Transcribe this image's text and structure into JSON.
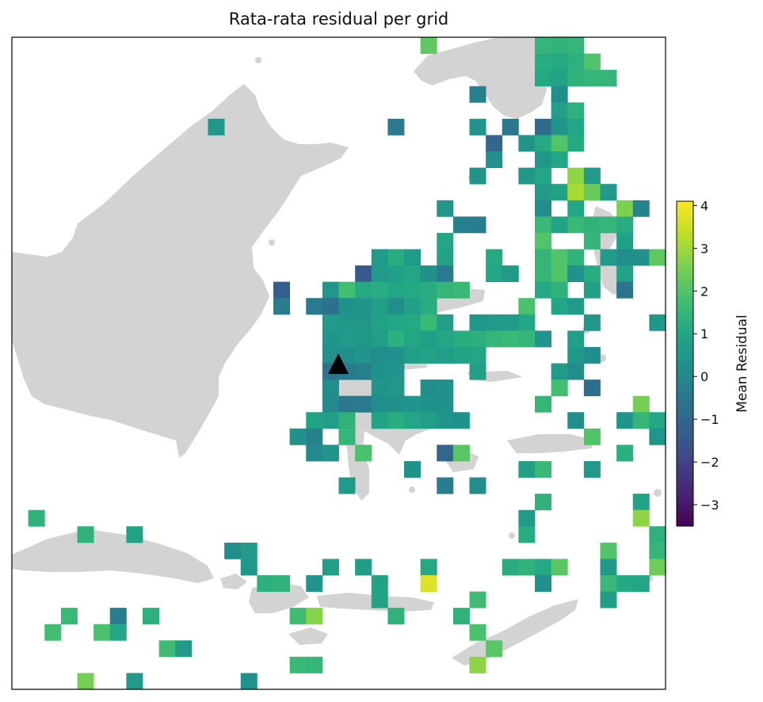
{
  "title": "Rata-rata residual per grid",
  "colorbar": {
    "label": "Mean Residual",
    "min": -3.5,
    "max": 4.1,
    "ticks": [
      4,
      3,
      2,
      1,
      0,
      -1,
      -2,
      -3
    ],
    "tick_labels": [
      "4",
      "3",
      "2",
      "1",
      "0",
      "−1",
      "−2",
      "−3"
    ],
    "colormap": "viridis"
  },
  "map": {
    "land_color": "#d3d3d3",
    "station_marker": "triangle",
    "grid": {
      "columns": 40,
      "rows": 40,
      "cells": [
        [
          25,
          0,
          2.2
        ],
        [
          32,
          0,
          1.5
        ],
        [
          33,
          0,
          1.4
        ],
        [
          34,
          0,
          1.5
        ],
        [
          32,
          1,
          1.2
        ],
        [
          33,
          1,
          1.1
        ],
        [
          34,
          1,
          1.3
        ],
        [
          35,
          1,
          2.0
        ],
        [
          32,
          2,
          1.1
        ],
        [
          33,
          2,
          0.9
        ],
        [
          34,
          2,
          1.4
        ],
        [
          35,
          2,
          1.5
        ],
        [
          36,
          2,
          1.5
        ],
        [
          28,
          3,
          -0.2
        ],
        [
          33,
          3,
          0.2
        ],
        [
          33,
          4,
          0.8
        ],
        [
          34,
          4,
          1.3
        ],
        [
          12,
          5,
          0.5
        ],
        [
          23,
          5,
          -0.4
        ],
        [
          28,
          5,
          0.4
        ],
        [
          30,
          5,
          -0.5
        ],
        [
          32,
          5,
          -0.9
        ],
        [
          33,
          5,
          0.4
        ],
        [
          34,
          5,
          1.0
        ],
        [
          29,
          6,
          -1.0
        ],
        [
          31,
          6,
          0.4
        ],
        [
          32,
          6,
          1.1
        ],
        [
          33,
          6,
          2.0
        ],
        [
          34,
          6,
          1.1
        ],
        [
          29,
          7,
          0.3
        ],
        [
          32,
          7,
          0.5
        ],
        [
          33,
          7,
          1.0
        ],
        [
          28,
          8,
          0.4
        ],
        [
          31,
          8,
          0.5
        ],
        [
          32,
          8,
          1.0
        ],
        [
          34,
          8,
          2.8
        ],
        [
          35,
          8,
          0.6
        ],
        [
          32,
          9,
          0.6
        ],
        [
          33,
          9,
          0.9
        ],
        [
          34,
          9,
          3.1
        ],
        [
          35,
          9,
          2.3
        ],
        [
          36,
          9,
          0.6
        ],
        [
          26,
          10,
          0.5
        ],
        [
          32,
          10,
          0.2
        ],
        [
          34,
          10,
          1.0
        ],
        [
          37,
          10,
          2.6
        ],
        [
          38,
          10,
          -0.1
        ],
        [
          27,
          11,
          -0.2
        ],
        [
          28,
          11,
          -0.3
        ],
        [
          32,
          11,
          1.6
        ],
        [
          33,
          11,
          0.9
        ],
        [
          34,
          11,
          1.6
        ],
        [
          35,
          11,
          1.4
        ],
        [
          36,
          11,
          1.5
        ],
        [
          37,
          11,
          1.2
        ],
        [
          26,
          12,
          1.0
        ],
        [
          32,
          12,
          2.0
        ],
        [
          35,
          12,
          1.5
        ],
        [
          37,
          12,
          0.8
        ],
        [
          22,
          13,
          0.6
        ],
        [
          23,
          13,
          1.2
        ],
        [
          24,
          13,
          0.6
        ],
        [
          26,
          13,
          0.9
        ],
        [
          29,
          13,
          1.1
        ],
        [
          32,
          13,
          1.5
        ],
        [
          33,
          13,
          2.0
        ],
        [
          34,
          13,
          1.4
        ],
        [
          36,
          13,
          0.6
        ],
        [
          37,
          13,
          0.2
        ],
        [
          38,
          13,
          0.3
        ],
        [
          39,
          13,
          2.2
        ],
        [
          21,
          14,
          -1.4
        ],
        [
          22,
          14,
          0.6
        ],
        [
          23,
          14,
          0.8
        ],
        [
          24,
          14,
          1.0
        ],
        [
          25,
          14,
          0.3
        ],
        [
          26,
          14,
          -0.4
        ],
        [
          29,
          14,
          1.0
        ],
        [
          30,
          14,
          0.6
        ],
        [
          32,
          14,
          1.5
        ],
        [
          33,
          14,
          2.0
        ],
        [
          34,
          14,
          0.3
        ],
        [
          35,
          14,
          1.2
        ],
        [
          37,
          14,
          0.9
        ],
        [
          16,
          15,
          -1.2
        ],
        [
          19,
          15,
          0.5
        ],
        [
          20,
          15,
          1.8
        ],
        [
          21,
          15,
          1.1
        ],
        [
          22,
          15,
          1.2
        ],
        [
          23,
          15,
          1.0
        ],
        [
          24,
          15,
          1.1
        ],
        [
          25,
          15,
          1.2
        ],
        [
          26,
          15,
          1.5
        ],
        [
          27,
          15,
          1.6
        ],
        [
          32,
          15,
          1.1
        ],
        [
          33,
          15,
          1.4
        ],
        [
          35,
          15,
          0.8
        ],
        [
          37,
          15,
          -0.6
        ],
        [
          16,
          16,
          -0.3
        ],
        [
          18,
          16,
          -0.4
        ],
        [
          19,
          16,
          -0.7
        ],
        [
          20,
          16,
          0.3
        ],
        [
          21,
          16,
          0.4
        ],
        [
          22,
          16,
          0.8
        ],
        [
          23,
          16,
          0.2
        ],
        [
          24,
          16,
          0.8
        ],
        [
          25,
          16,
          1.2
        ],
        [
          31,
          16,
          1.9
        ],
        [
          33,
          16,
          1.0
        ],
        [
          34,
          16,
          0.6
        ],
        [
          19,
          17,
          0.6
        ],
        [
          20,
          17,
          0.5
        ],
        [
          21,
          17,
          0.5
        ],
        [
          22,
          17,
          0.9
        ],
        [
          23,
          17,
          1.0
        ],
        [
          24,
          17,
          1.1
        ],
        [
          25,
          17,
          1.6
        ],
        [
          26,
          17,
          0.7
        ],
        [
          28,
          17,
          0.5
        ],
        [
          29,
          17,
          0.6
        ],
        [
          30,
          17,
          0.6
        ],
        [
          31,
          17,
          1.0
        ],
        [
          35,
          17,
          0.5
        ],
        [
          39,
          17,
          0.5
        ],
        [
          19,
          18,
          0.4
        ],
        [
          20,
          18,
          0.6
        ],
        [
          21,
          18,
          0.5
        ],
        [
          22,
          18,
          0.7
        ],
        [
          23,
          18,
          1.3
        ],
        [
          24,
          18,
          1.0
        ],
        [
          25,
          18,
          0.8
        ],
        [
          26,
          18,
          1.0
        ],
        [
          27,
          18,
          1.2
        ],
        [
          28,
          18,
          1.3
        ],
        [
          29,
          18,
          1.5
        ],
        [
          30,
          18,
          1.6
        ],
        [
          31,
          18,
          1.5
        ],
        [
          32,
          18,
          0.4
        ],
        [
          34,
          18,
          0.8
        ],
        [
          40,
          18,
          0.2
        ],
        [
          19,
          19,
          0.3
        ],
        [
          20,
          19,
          0.2
        ],
        [
          21,
          19,
          0.4
        ],
        [
          22,
          19,
          0.2
        ],
        [
          23,
          19,
          0.3
        ],
        [
          24,
          19,
          0.7
        ],
        [
          25,
          19,
          0.9
        ],
        [
          26,
          19,
          0.7
        ],
        [
          27,
          19,
          0.9
        ],
        [
          28,
          19,
          1.0
        ],
        [
          34,
          19,
          0.5
        ],
        [
          35,
          19,
          0.2
        ],
        [
          19,
          20,
          -0.6
        ],
        [
          20,
          20,
          -0.4
        ],
        [
          21,
          20,
          -0.2
        ],
        [
          22,
          20,
          0.3
        ],
        [
          23,
          20,
          0.4
        ],
        [
          28,
          20,
          0.8
        ],
        [
          33,
          20,
          0.6
        ],
        [
          34,
          20,
          0.2
        ],
        [
          19,
          21,
          0.2
        ],
        [
          22,
          21,
          0.4
        ],
        [
          23,
          21,
          0.5
        ],
        [
          25,
          21,
          0.2
        ],
        [
          26,
          21,
          0.3
        ],
        [
          33,
          21,
          1.8
        ],
        [
          35,
          21,
          -0.7
        ],
        [
          19,
          22,
          0.1
        ],
        [
          20,
          22,
          -0.5
        ],
        [
          21,
          22,
          -0.4
        ],
        [
          22,
          22,
          0.2
        ],
        [
          23,
          22,
          0.3
        ],
        [
          24,
          22,
          0.4
        ],
        [
          25,
          22,
          0.3
        ],
        [
          26,
          22,
          0.3
        ],
        [
          32,
          22,
          1.5
        ],
        [
          38,
          22,
          2.5
        ],
        [
          18,
          23,
          0.9
        ],
        [
          19,
          23,
          0.7
        ],
        [
          20,
          23,
          1.4
        ],
        [
          22,
          23,
          0.9
        ],
        [
          23,
          23,
          1.2
        ],
        [
          24,
          23,
          1.0
        ],
        [
          25,
          23,
          0.7
        ],
        [
          26,
          23,
          0.4
        ],
        [
          27,
          23,
          0.3
        ],
        [
          34,
          23,
          0.2
        ],
        [
          37,
          23,
          0.4
        ],
        [
          38,
          23,
          1.5
        ],
        [
          39,
          23,
          1.0
        ],
        [
          40,
          23,
          0.8
        ],
        [
          17,
          24,
          0.3
        ],
        [
          18,
          24,
          -0.2
        ],
        [
          20,
          24,
          1.5
        ],
        [
          35,
          24,
          2.0
        ],
        [
          39,
          24,
          0.4
        ],
        [
          18,
          25,
          0.1
        ],
        [
          19,
          25,
          0.4
        ],
        [
          21,
          25,
          1.9
        ],
        [
          26,
          25,
          -1.0
        ],
        [
          27,
          25,
          2.1
        ],
        [
          37,
          25,
          1.3
        ],
        [
          24,
          26,
          0.3
        ],
        [
          31,
          26,
          0.8
        ],
        [
          32,
          26,
          1.6
        ],
        [
          35,
          26,
          0.6
        ],
        [
          20,
          27,
          0.6
        ],
        [
          26,
          27,
          -0.3
        ],
        [
          28,
          27,
          0.2
        ],
        [
          32,
          28,
          1.4
        ],
        [
          38,
          28,
          0.9
        ],
        [
          1,
          29,
          1.4
        ],
        [
          31,
          29,
          0.6
        ],
        [
          38,
          29,
          2.8
        ],
        [
          40,
          29,
          1.2
        ],
        [
          4,
          30,
          1.4
        ],
        [
          7,
          30,
          0.9
        ],
        [
          31,
          30,
          1.2
        ],
        [
          39,
          30,
          1.3
        ],
        [
          40,
          30,
          0.8
        ],
        [
          13,
          31,
          0.2
        ],
        [
          14,
          31,
          0.6
        ],
        [
          36,
          31,
          2.0
        ],
        [
          39,
          31,
          1.5
        ],
        [
          40,
          31,
          0.6
        ],
        [
          14,
          32,
          0.5
        ],
        [
          19,
          32,
          0.8
        ],
        [
          21,
          32,
          0.7
        ],
        [
          25,
          32,
          1.1
        ],
        [
          30,
          32,
          1.2
        ],
        [
          31,
          32,
          1.4
        ],
        [
          32,
          32,
          1.1
        ],
        [
          33,
          32,
          2.1
        ],
        [
          36,
          32,
          0.6
        ],
        [
          39,
          32,
          2.4
        ],
        [
          40,
          32,
          2.0
        ],
        [
          15,
          33,
          1.3
        ],
        [
          16,
          33,
          1.4
        ],
        [
          18,
          33,
          0.4
        ],
        [
          22,
          33,
          0.9
        ],
        [
          25,
          33,
          3.7
        ],
        [
          32,
          33,
          0.3
        ],
        [
          36,
          33,
          1.6
        ],
        [
          37,
          33,
          1.1
        ],
        [
          38,
          33,
          1.0
        ],
        [
          22,
          34,
          0.9
        ],
        [
          28,
          34,
          1.7
        ],
        [
          36,
          34,
          0.7
        ],
        [
          3,
          35,
          1.6
        ],
        [
          6,
          35,
          -0.3
        ],
        [
          8,
          35,
          1.3
        ],
        [
          17,
          35,
          1.7
        ],
        [
          18,
          35,
          2.7
        ],
        [
          23,
          35,
          1.4
        ],
        [
          27,
          35,
          1.4
        ],
        [
          2,
          36,
          1.8
        ],
        [
          5,
          36,
          1.9
        ],
        [
          6,
          36,
          1.0
        ],
        [
          28,
          36,
          1.9
        ],
        [
          9,
          37,
          1.7
        ],
        [
          10,
          37,
          0.6
        ],
        [
          29,
          37,
          2.1
        ],
        [
          17,
          38,
          1.6
        ],
        [
          18,
          38,
          1.5
        ],
        [
          28,
          38,
          2.8
        ],
        [
          4,
          39,
          2.5
        ],
        [
          7,
          39,
          0.6
        ],
        [
          14,
          39,
          0.3
        ]
      ]
    }
  }
}
